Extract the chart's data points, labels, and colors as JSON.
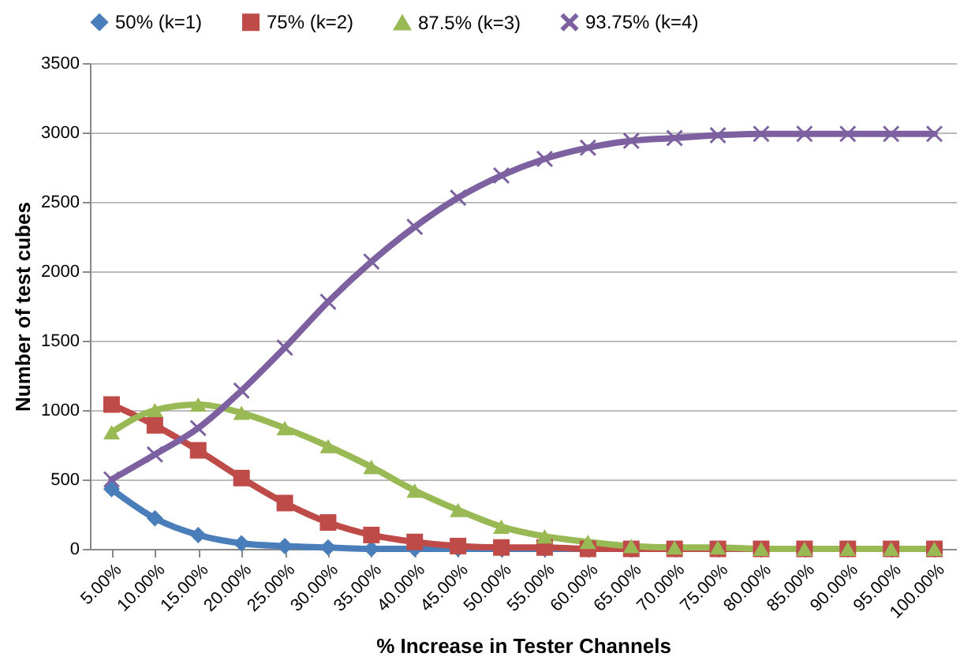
{
  "chart_data": {
    "type": "line",
    "xlabel": "% Increase in Tester Channels",
    "ylabel": "Number of test cubes",
    "categories": [
      "5.00%",
      "10.00%",
      "15.00%",
      "20.00%",
      "25.00%",
      "30.00%",
      "35.00%",
      "40.00%",
      "45.00%",
      "50.00%",
      "55.00%",
      "60.00%",
      "65.00%",
      "70.00%",
      "75.00%",
      "80.00%",
      "85.00%",
      "90.00%",
      "95.00%",
      "100.00%"
    ],
    "series": [
      {
        "name": "50% (k=1)",
        "color": "#4a7ebb",
        "marker": "diamond",
        "values": [
          430,
          220,
          100,
          40,
          20,
          10,
          0,
          0,
          0,
          0,
          0,
          0,
          0,
          null,
          null,
          null,
          null,
          null,
          null,
          null
        ]
      },
      {
        "name": "75% (k=2)",
        "color": "#be4b48",
        "marker": "square",
        "values": [
          1040,
          890,
          710,
          510,
          330,
          190,
          100,
          50,
          20,
          10,
          10,
          0,
          0,
          0,
          0,
          0,
          0,
          0,
          0,
          0
        ]
      },
      {
        "name": "87.5% (k=3)",
        "color": "#98b954",
        "marker": "triangle",
        "values": [
          840,
          1000,
          1040,
          980,
          870,
          740,
          590,
          420,
          280,
          160,
          90,
          50,
          20,
          10,
          10,
          0,
          0,
          0,
          0,
          0
        ]
      },
      {
        "name": "93.75% (k=4)",
        "color": "#7d60a0",
        "marker": "cross",
        "values": [
          500,
          680,
          870,
          1140,
          1450,
          1780,
          2070,
          2320,
          2530,
          2690,
          2810,
          2890,
          2940,
          2960,
          2980,
          2990,
          2990,
          2990,
          2990,
          2990
        ]
      }
    ],
    "ylim": [
      0,
      3500
    ],
    "yticks": [
      0,
      500,
      1000,
      1500,
      2000,
      2500,
      3000,
      3500
    ],
    "grid": "y",
    "legend": "top"
  }
}
